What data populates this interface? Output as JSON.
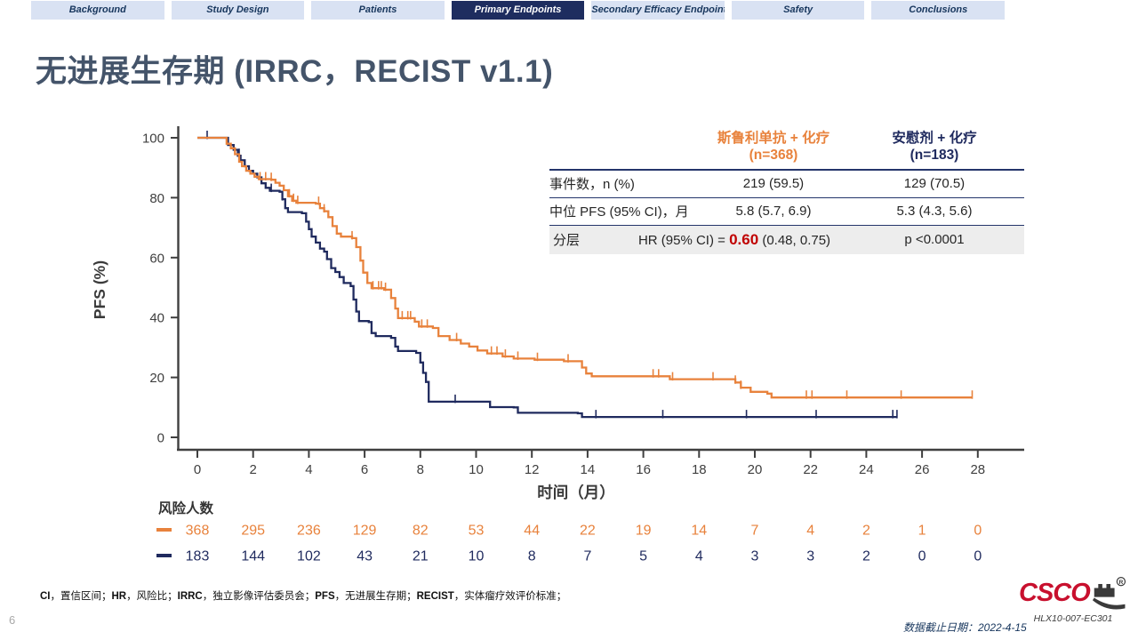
{
  "nav": {
    "tabs": [
      {
        "label": "Background",
        "active": false
      },
      {
        "label": "Study Design",
        "active": false
      },
      {
        "label": "Patients",
        "active": false
      },
      {
        "label": "Primary Endpoints",
        "active": true
      },
      {
        "label": "Secondary Efficacy Endpoints",
        "active": false
      },
      {
        "label": "Safety",
        "active": false
      },
      {
        "label": "Conclusions",
        "active": false
      }
    ]
  },
  "title": "无进展生存期 (IRRC，RECIST v1.1)",
  "colors": {
    "arm1_orange": "#E8823C",
    "arm2_navy": "#1F2A5E",
    "hr_red": "#C00000",
    "title_slate": "#44546A",
    "nav_active_bg": "#1E2D5F",
    "nav_inactive_bg": "#D9E2F3"
  },
  "summary_table": {
    "columns": [
      {
        "name": "斯鲁利单抗 + 化疗",
        "n": "(n=368)",
        "color": "#E8823C"
      },
      {
        "name": "安慰剂 + 化疗",
        "n": "(n=183)",
        "color": "#1F2A5E"
      }
    ],
    "rows": [
      {
        "label": "事件数，n (%)",
        "values": [
          "219 (59.5)",
          "129 (70.5)"
        ]
      },
      {
        "label": "中位 PFS (95% CI)，月",
        "values": [
          "5.8 (5.7, 6.9)",
          "5.3 (4.3, 5.6)"
        ]
      }
    ],
    "hr_row": {
      "label": "分层",
      "prefix": "HR (95% CI) = ",
      "hr": "0.60",
      "ci": " (0.48, 0.75)",
      "p": "p <0.0001",
      "hr_color": "#C00000"
    }
  },
  "chart_data": {
    "type": "line",
    "subtype": "kaplan-meier-step",
    "title": "",
    "xlabel": "时间（月）",
    "ylabel": "PFS (%)",
    "xlim": [
      0,
      29
    ],
    "ylim": [
      0,
      100
    ],
    "grid": false,
    "xticks": [
      0,
      2,
      4,
      6,
      8,
      10,
      12,
      14,
      16,
      18,
      20,
      22,
      24,
      26,
      28
    ],
    "yticks": [
      0,
      20,
      40,
      60,
      80,
      100
    ],
    "series": [
      {
        "name": "斯鲁利单抗 + 化疗 (n=368)",
        "color": "#E8823C",
        "median_pfs": "5.8 (5.7, 6.9)",
        "events": "219 (59.5)",
        "steps": [
          [
            0,
            100
          ],
          [
            0.9,
            100
          ],
          [
            1.05,
            98
          ],
          [
            1.2,
            96.5
          ],
          [
            1.35,
            94.5
          ],
          [
            1.5,
            92
          ],
          [
            1.6,
            90.5
          ],
          [
            1.75,
            89
          ],
          [
            1.9,
            88
          ],
          [
            2.05,
            87
          ],
          [
            2.2,
            86.2
          ],
          [
            2.65,
            86
          ],
          [
            2.8,
            85
          ],
          [
            2.95,
            84
          ],
          [
            3.1,
            82.5
          ],
          [
            3.25,
            80.5
          ],
          [
            3.4,
            79
          ],
          [
            3.55,
            78.3
          ],
          [
            4.25,
            78
          ],
          [
            4.4,
            76.5
          ],
          [
            4.55,
            75.5
          ],
          [
            4.7,
            73.5
          ],
          [
            4.85,
            70.5
          ],
          [
            5,
            68
          ],
          [
            5.15,
            67
          ],
          [
            5.55,
            66.5
          ],
          [
            5.7,
            63.5
          ],
          [
            5.85,
            59
          ],
          [
            5.95,
            55
          ],
          [
            6.1,
            51.5
          ],
          [
            6.25,
            49.8
          ],
          [
            6.7,
            49.3
          ],
          [
            6.95,
            46.5
          ],
          [
            7.1,
            43
          ],
          [
            7.2,
            39.8
          ],
          [
            7.8,
            38.6
          ],
          [
            7.95,
            37
          ],
          [
            8.45,
            36.5
          ],
          [
            8.65,
            33.8
          ],
          [
            9.05,
            32.5
          ],
          [
            9.45,
            31.3
          ],
          [
            9.75,
            30.3
          ],
          [
            10.05,
            29
          ],
          [
            10.4,
            28
          ],
          [
            10.95,
            27
          ],
          [
            11.35,
            26.3
          ],
          [
            12.1,
            25.9
          ],
          [
            13.15,
            25.4
          ],
          [
            13.8,
            23.3
          ],
          [
            13.95,
            21.3
          ],
          [
            14.15,
            20.4
          ],
          [
            16.95,
            19.4
          ],
          [
            19.3,
            18.3
          ],
          [
            19.5,
            16.6
          ],
          [
            19.85,
            15.2
          ],
          [
            20.45,
            14.6
          ],
          [
            20.6,
            13.3
          ],
          [
            27.8,
            13.3
          ]
        ],
        "censors": [
          2.25,
          2.45,
          2.65,
          3.3,
          3.45,
          3.6,
          4.35,
          4.55,
          5.55,
          6.3,
          6.5,
          6.6,
          6.75,
          7.35,
          7.55,
          7.65,
          8.05,
          8.25,
          9.3,
          10.55,
          10.75,
          11.05,
          11.5,
          12.2,
          13.3,
          16.35,
          16.55,
          17.05,
          18.5,
          19.3,
          19.5,
          21.85,
          22.05,
          23.3,
          25.25,
          27.8
        ]
      },
      {
        "name": "安慰剂 + 化疗 (n=183)",
        "color": "#1F2A5E",
        "median_pfs": "5.3 (4.3, 5.6)",
        "events": "129 (70.5)",
        "steps": [
          [
            0,
            100
          ],
          [
            0.9,
            100
          ],
          [
            1.1,
            97.6
          ],
          [
            1.3,
            96
          ],
          [
            1.45,
            94
          ],
          [
            1.55,
            92.5
          ],
          [
            1.7,
            90.5
          ],
          [
            1.85,
            89
          ],
          [
            2,
            88
          ],
          [
            2.15,
            86.8
          ],
          [
            2.3,
            84.8
          ],
          [
            2.45,
            83.3
          ],
          [
            2.6,
            82.3
          ],
          [
            2.95,
            82
          ],
          [
            3.05,
            79.5
          ],
          [
            3.15,
            76.5
          ],
          [
            3.25,
            75.2
          ],
          [
            3.75,
            74.8
          ],
          [
            3.9,
            72
          ],
          [
            4,
            69.5
          ],
          [
            4.1,
            67
          ],
          [
            4.25,
            65
          ],
          [
            4.4,
            63
          ],
          [
            4.55,
            62
          ],
          [
            4.65,
            59.5
          ],
          [
            4.8,
            56.5
          ],
          [
            4.95,
            55.2
          ],
          [
            5.1,
            53.5
          ],
          [
            5.25,
            51.5
          ],
          [
            5.5,
            50.5
          ],
          [
            5.6,
            46
          ],
          [
            5.7,
            42
          ],
          [
            5.8,
            38.8
          ],
          [
            6.15,
            38.5
          ],
          [
            6.25,
            34.8
          ],
          [
            6.4,
            33.8
          ],
          [
            6.95,
            33.2
          ],
          [
            7.1,
            30.3
          ],
          [
            7.2,
            28.8
          ],
          [
            7.85,
            28.2
          ],
          [
            8,
            25
          ],
          [
            8.1,
            21.5
          ],
          [
            8.2,
            18.5
          ],
          [
            8.3,
            11.9
          ],
          [
            10.35,
            11.9
          ],
          [
            10.5,
            10.1
          ],
          [
            11.35,
            10
          ],
          [
            11.5,
            8.2
          ],
          [
            13.65,
            8
          ],
          [
            13.8,
            6.8
          ],
          [
            25.1,
            6.8
          ]
        ],
        "censors": [
          0.35,
          1.5,
          2.65,
          3.05,
          9.25,
          14.3,
          16.7,
          19.7,
          22.2,
          24.95,
          25.1
        ]
      }
    ],
    "risk_table": {
      "label": "风险人数",
      "timepoints": [
        0,
        2,
        4,
        6,
        8,
        10,
        12,
        14,
        16,
        18,
        20,
        22,
        24,
        26,
        28
      ],
      "rows": [
        {
          "arm": "斯鲁利单抗 + 化疗",
          "color": "#E8823C",
          "values": [
            368,
            295,
            236,
            129,
            82,
            53,
            44,
            22,
            19,
            14,
            7,
            4,
            2,
            1,
            0
          ]
        },
        {
          "arm": "安慰剂 + 化疗",
          "color": "#1F2A5E",
          "values": [
            183,
            144,
            102,
            43,
            21,
            10,
            8,
            7,
            5,
            4,
            3,
            3,
            2,
            0,
            0
          ]
        }
      ]
    }
  },
  "footnote": {
    "segments": [
      {
        "t": "CI",
        "b": true
      },
      {
        "t": "，置信区间；",
        "b": false
      },
      {
        "t": "HR",
        "b": true
      },
      {
        "t": "，风险比；",
        "b": false
      },
      {
        "t": "IRRC",
        "b": true
      },
      {
        "t": "，独立影像评估委员会；",
        "b": false
      },
      {
        "t": "PFS",
        "b": true
      },
      {
        "t": "，无进展生存期；",
        "b": false
      },
      {
        "t": "RECIST",
        "b": true
      },
      {
        "t": "，实体瘤疗效评价标准；",
        "b": false
      }
    ]
  },
  "footer": {
    "page": "6",
    "cutoff": "数据截止日期：2022-4-15",
    "study_id": "HLX10-007-EC301",
    "logo_text": "CSCO"
  }
}
